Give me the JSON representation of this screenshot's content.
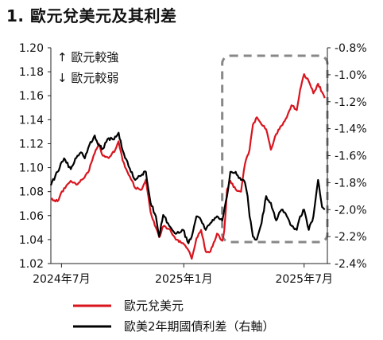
{
  "chart_data": {
    "type": "line",
    "title": "1. 歐元兌美元及其利差",
    "x_tick_labels": [
      "2024年7月",
      "2025年1月",
      "2025年7月"
    ],
    "x_tick_dates": [
      "2024-07-01",
      "2025-01-01",
      "2025-07-01"
    ],
    "x_range": [
      "2024-06-15",
      "2025-08-05"
    ],
    "y_left": {
      "range": [
        1.02,
        1.2
      ],
      "ticks": [
        "1.02",
        "1.04",
        "1.06",
        "1.08",
        "1.10",
        "1.12",
        "1.14",
        "1.16",
        "1.18",
        "1.20"
      ]
    },
    "y_right": {
      "range": [
        -2.4,
        -0.8
      ],
      "unit": "%",
      "ticks": [
        "-2.4%",
        "-2.2%",
        "-2.0%",
        "-1.8%",
        "-1.6%",
        "-1.4%",
        "-1.2%",
        "-1.0%",
        "-0.8%"
      ]
    },
    "annotations": {
      "up": "↑ 歐元較強",
      "down": "↓ 歐元較弱"
    },
    "highlight_box": {
      "x_range": [
        "2025-03-01",
        "2025-08-05"
      ]
    },
    "colors": {
      "eurusd": "#d9141e",
      "spread": "#000000",
      "box": "#888888"
    },
    "series": [
      {
        "name": "歐元兌美元",
        "axis": "left",
        "x": [
          "2024-06-15",
          "2024-06-25",
          "2024-07-05",
          "2024-07-15",
          "2024-07-25",
          "2024-08-01",
          "2024-08-10",
          "2024-08-20",
          "2024-08-26",
          "2024-09-01",
          "2024-09-10",
          "2024-09-20",
          "2024-09-25",
          "2024-10-01",
          "2024-10-10",
          "2024-10-20",
          "2024-10-30",
          "2024-11-05",
          "2024-11-12",
          "2024-11-20",
          "2024-11-25",
          "2024-12-01",
          "2024-12-10",
          "2024-12-20",
          "2024-12-31",
          "2025-01-08",
          "2025-01-13",
          "2025-01-20",
          "2025-01-27",
          "2025-02-03",
          "2025-02-10",
          "2025-02-20",
          "2025-02-28",
          "2025-03-03",
          "2025-03-05",
          "2025-03-07",
          "2025-03-12",
          "2025-03-20",
          "2025-03-28",
          "2025-04-03",
          "2025-04-10",
          "2025-04-15",
          "2025-04-21",
          "2025-04-28",
          "2025-05-05",
          "2025-05-12",
          "2025-05-20",
          "2025-05-28",
          "2025-06-05",
          "2025-06-12",
          "2025-06-20",
          "2025-06-25",
          "2025-07-01",
          "2025-07-08",
          "2025-07-15",
          "2025-07-22",
          "2025-07-28",
          "2025-08-01"
        ],
        "y": [
          1.074,
          1.072,
          1.083,
          1.089,
          1.086,
          1.09,
          1.096,
          1.112,
          1.12,
          1.11,
          1.108,
          1.115,
          1.122,
          1.106,
          1.094,
          1.083,
          1.082,
          1.09,
          1.063,
          1.05,
          1.042,
          1.051,
          1.049,
          1.04,
          1.037,
          1.031,
          1.024,
          1.041,
          1.048,
          1.03,
          1.03,
          1.045,
          1.039,
          1.048,
          1.063,
          1.082,
          1.089,
          1.082,
          1.08,
          1.103,
          1.115,
          1.136,
          1.142,
          1.136,
          1.132,
          1.115,
          1.128,
          1.135,
          1.142,
          1.152,
          1.148,
          1.165,
          1.178,
          1.172,
          1.162,
          1.17,
          1.163,
          1.158
        ]
      },
      {
        "name": "歐美2年期國債利差（右軸）",
        "axis": "right",
        "x": [
          "2024-06-15",
          "2024-06-25",
          "2024-07-05",
          "2024-07-15",
          "2024-07-25",
          "2024-08-01",
          "2024-08-05",
          "2024-08-12",
          "2024-08-20",
          "2024-08-26",
          "2024-09-01",
          "2024-09-10",
          "2024-09-18",
          "2024-09-25",
          "2024-10-01",
          "2024-10-10",
          "2024-10-20",
          "2024-10-30",
          "2024-11-05",
          "2024-11-12",
          "2024-11-20",
          "2024-11-25",
          "2024-12-01",
          "2024-12-10",
          "2024-12-20",
          "2024-12-31",
          "2025-01-08",
          "2025-01-13",
          "2025-01-20",
          "2025-01-27",
          "2025-02-03",
          "2025-02-10",
          "2025-02-20",
          "2025-02-28",
          "2025-03-03",
          "2025-03-07",
          "2025-03-12",
          "2025-03-20",
          "2025-03-28",
          "2025-04-03",
          "2025-04-07",
          "2025-04-10",
          "2025-04-15",
          "2025-04-21",
          "2025-04-28",
          "2025-05-05",
          "2025-05-12",
          "2025-05-20",
          "2025-05-28",
          "2025-06-05",
          "2025-06-12",
          "2025-06-20",
          "2025-06-25",
          "2025-07-01",
          "2025-07-08",
          "2025-07-15",
          "2025-07-22",
          "2025-07-28",
          "2025-08-01"
        ],
        "y": [
          -1.82,
          -1.72,
          -1.62,
          -1.7,
          -1.6,
          -1.58,
          -1.62,
          -1.52,
          -1.45,
          -1.52,
          -1.55,
          -1.47,
          -1.48,
          -1.43,
          -1.56,
          -1.68,
          -1.78,
          -1.74,
          -1.72,
          -1.95,
          -2.05,
          -2.2,
          -2.04,
          -2.12,
          -2.18,
          -2.15,
          -2.25,
          -2.2,
          -2.05,
          -2.08,
          -2.15,
          -2.1,
          -2.05,
          -2.08,
          -2.0,
          -1.9,
          -1.72,
          -1.72,
          -1.78,
          -1.8,
          -1.9,
          -2.05,
          -2.2,
          -2.22,
          -2.1,
          -1.9,
          -1.95,
          -2.08,
          -2.0,
          -2.05,
          -2.12,
          -2.15,
          -2.05,
          -2.0,
          -2.15,
          -2.05,
          -1.78,
          -1.98,
          -2.0
        ]
      }
    ]
  }
}
